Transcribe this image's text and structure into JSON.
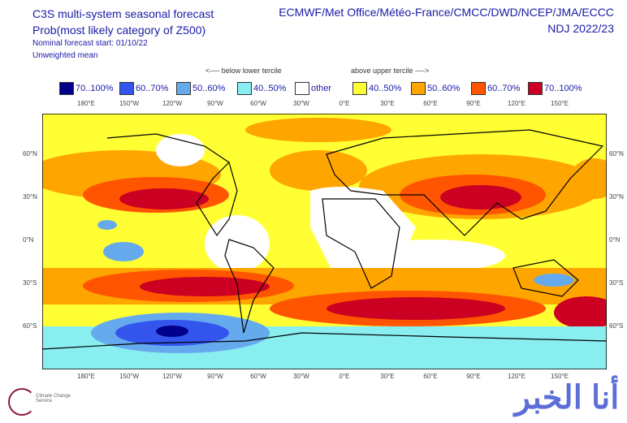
{
  "header": {
    "title": "C3S multi-system seasonal forecast",
    "subtitle": "Prob(most likely category of Z500)",
    "start": "Nominal forecast start: 01/10/22",
    "mean": "Unweighted mean",
    "centres": "ECMWF/Met Office/Météo-France/CMCC/DWD/NCEP/JMA/ECCC",
    "season": "NDJ 2022/23"
  },
  "legend": {
    "below": "<---- below lower tercile",
    "above": "above upper tercile ---->",
    "items": [
      {
        "label": "70..100%",
        "color": "#00008b"
      },
      {
        "label": "60..70%",
        "color": "#3355ee"
      },
      {
        "label": "50..60%",
        "color": "#66aaee"
      },
      {
        "label": "40..50%",
        "color": "#88eef0"
      },
      {
        "label": "other",
        "color": "#ffffff"
      },
      {
        "label": "40..50%",
        "color": "#ffff33"
      },
      {
        "label": "50..60%",
        "color": "#ffa500"
      },
      {
        "label": "60..70%",
        "color": "#ff5500"
      },
      {
        "label": "70..100%",
        "color": "#cc0022"
      }
    ]
  },
  "lon_labels": [
    "180°E",
    "150°W",
    "120°W",
    "90°W",
    "60°W",
    "30°W",
    "0°E",
    "30°E",
    "60°E",
    "90°E",
    "120°E",
    "150°E"
  ],
  "lat_labels": [
    "60°N",
    "30°N",
    "0°N",
    "30°S",
    "60°S"
  ],
  "footer": {
    "logo": "Climate Change Service",
    "watermark": "أنا الخبر"
  }
}
